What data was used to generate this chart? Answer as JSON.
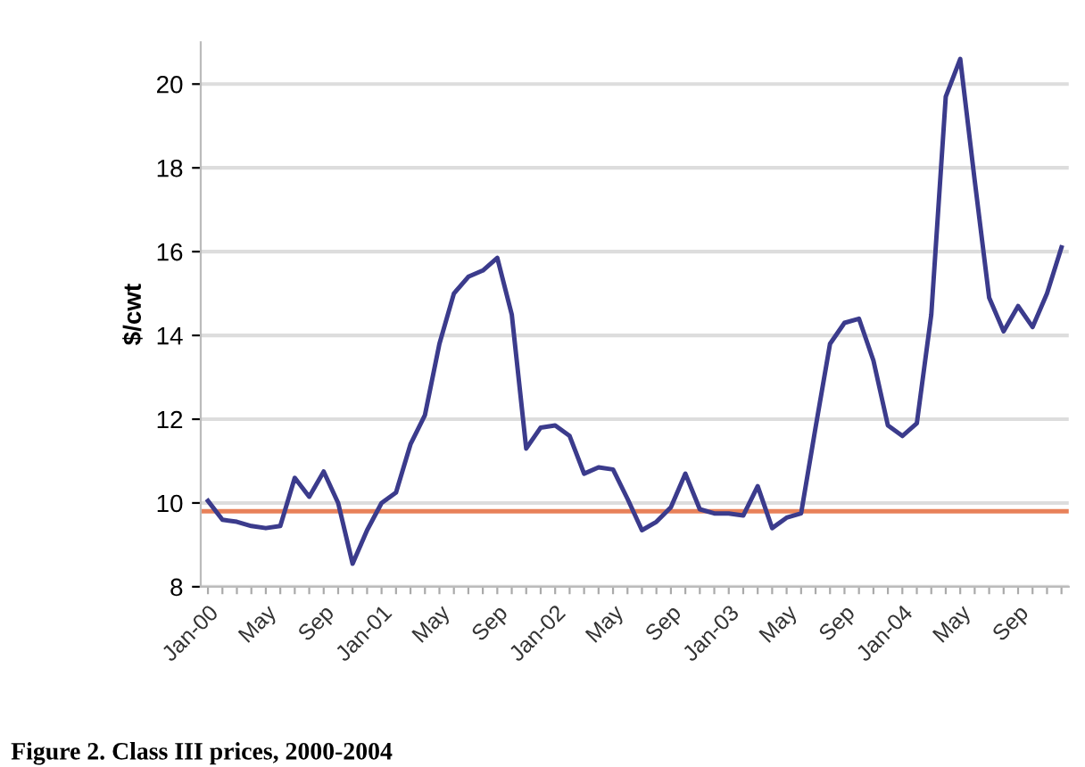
{
  "chart_data": {
    "type": "line",
    "ylabel": "$/cwt",
    "annotations": [
      "Figure 2. Class III prices, 2000-2004"
    ],
    "categories": [
      "Jan-00",
      null,
      null,
      null,
      "May",
      null,
      null,
      null,
      "Sep",
      null,
      null,
      null,
      "Jan-01",
      null,
      null,
      null,
      "May",
      null,
      null,
      null,
      "Sep",
      null,
      null,
      null,
      "Jan-02",
      null,
      null,
      null,
      "May",
      null,
      null,
      null,
      "Sep",
      null,
      null,
      null,
      "Jan-03",
      null,
      null,
      null,
      "May",
      null,
      null,
      null,
      "Sep",
      null,
      null,
      null,
      "Jan-04",
      null,
      null,
      null,
      "May",
      null,
      null,
      null,
      "Sep",
      null,
      null,
      null
    ],
    "series": [
      {
        "color": "#3b3b8c",
        "values": [
          10.05,
          9.6,
          9.55,
          9.45,
          9.4,
          9.45,
          10.6,
          10.15,
          10.75,
          10.0,
          8.55,
          9.35,
          10.0,
          10.25,
          11.4,
          12.1,
          13.8,
          15.0,
          15.4,
          15.55,
          15.85,
          14.5,
          11.3,
          11.8,
          11.85,
          11.6,
          10.7,
          10.85,
          10.8,
          10.1,
          9.35,
          9.55,
          9.9,
          10.7,
          9.85,
          9.75,
          9.75,
          9.7,
          10.4,
          9.4,
          9.65,
          9.75,
          11.8,
          13.8,
          14.3,
          14.4,
          13.4,
          11.85,
          11.6,
          11.9,
          14.5,
          19.7,
          20.6,
          17.7,
          14.9,
          14.1,
          14.7,
          14.2,
          15.0,
          16.1
        ]
      }
    ],
    "ref_lines": [
      {
        "axis": "y",
        "value": 9.8,
        "color": "#e8825a"
      }
    ],
    "ylim": [
      8,
      21
    ],
    "yticks": [
      8,
      10,
      12,
      14,
      16,
      18,
      20
    ],
    "grid": "y",
    "marker": "none",
    "line_style": "solid"
  }
}
